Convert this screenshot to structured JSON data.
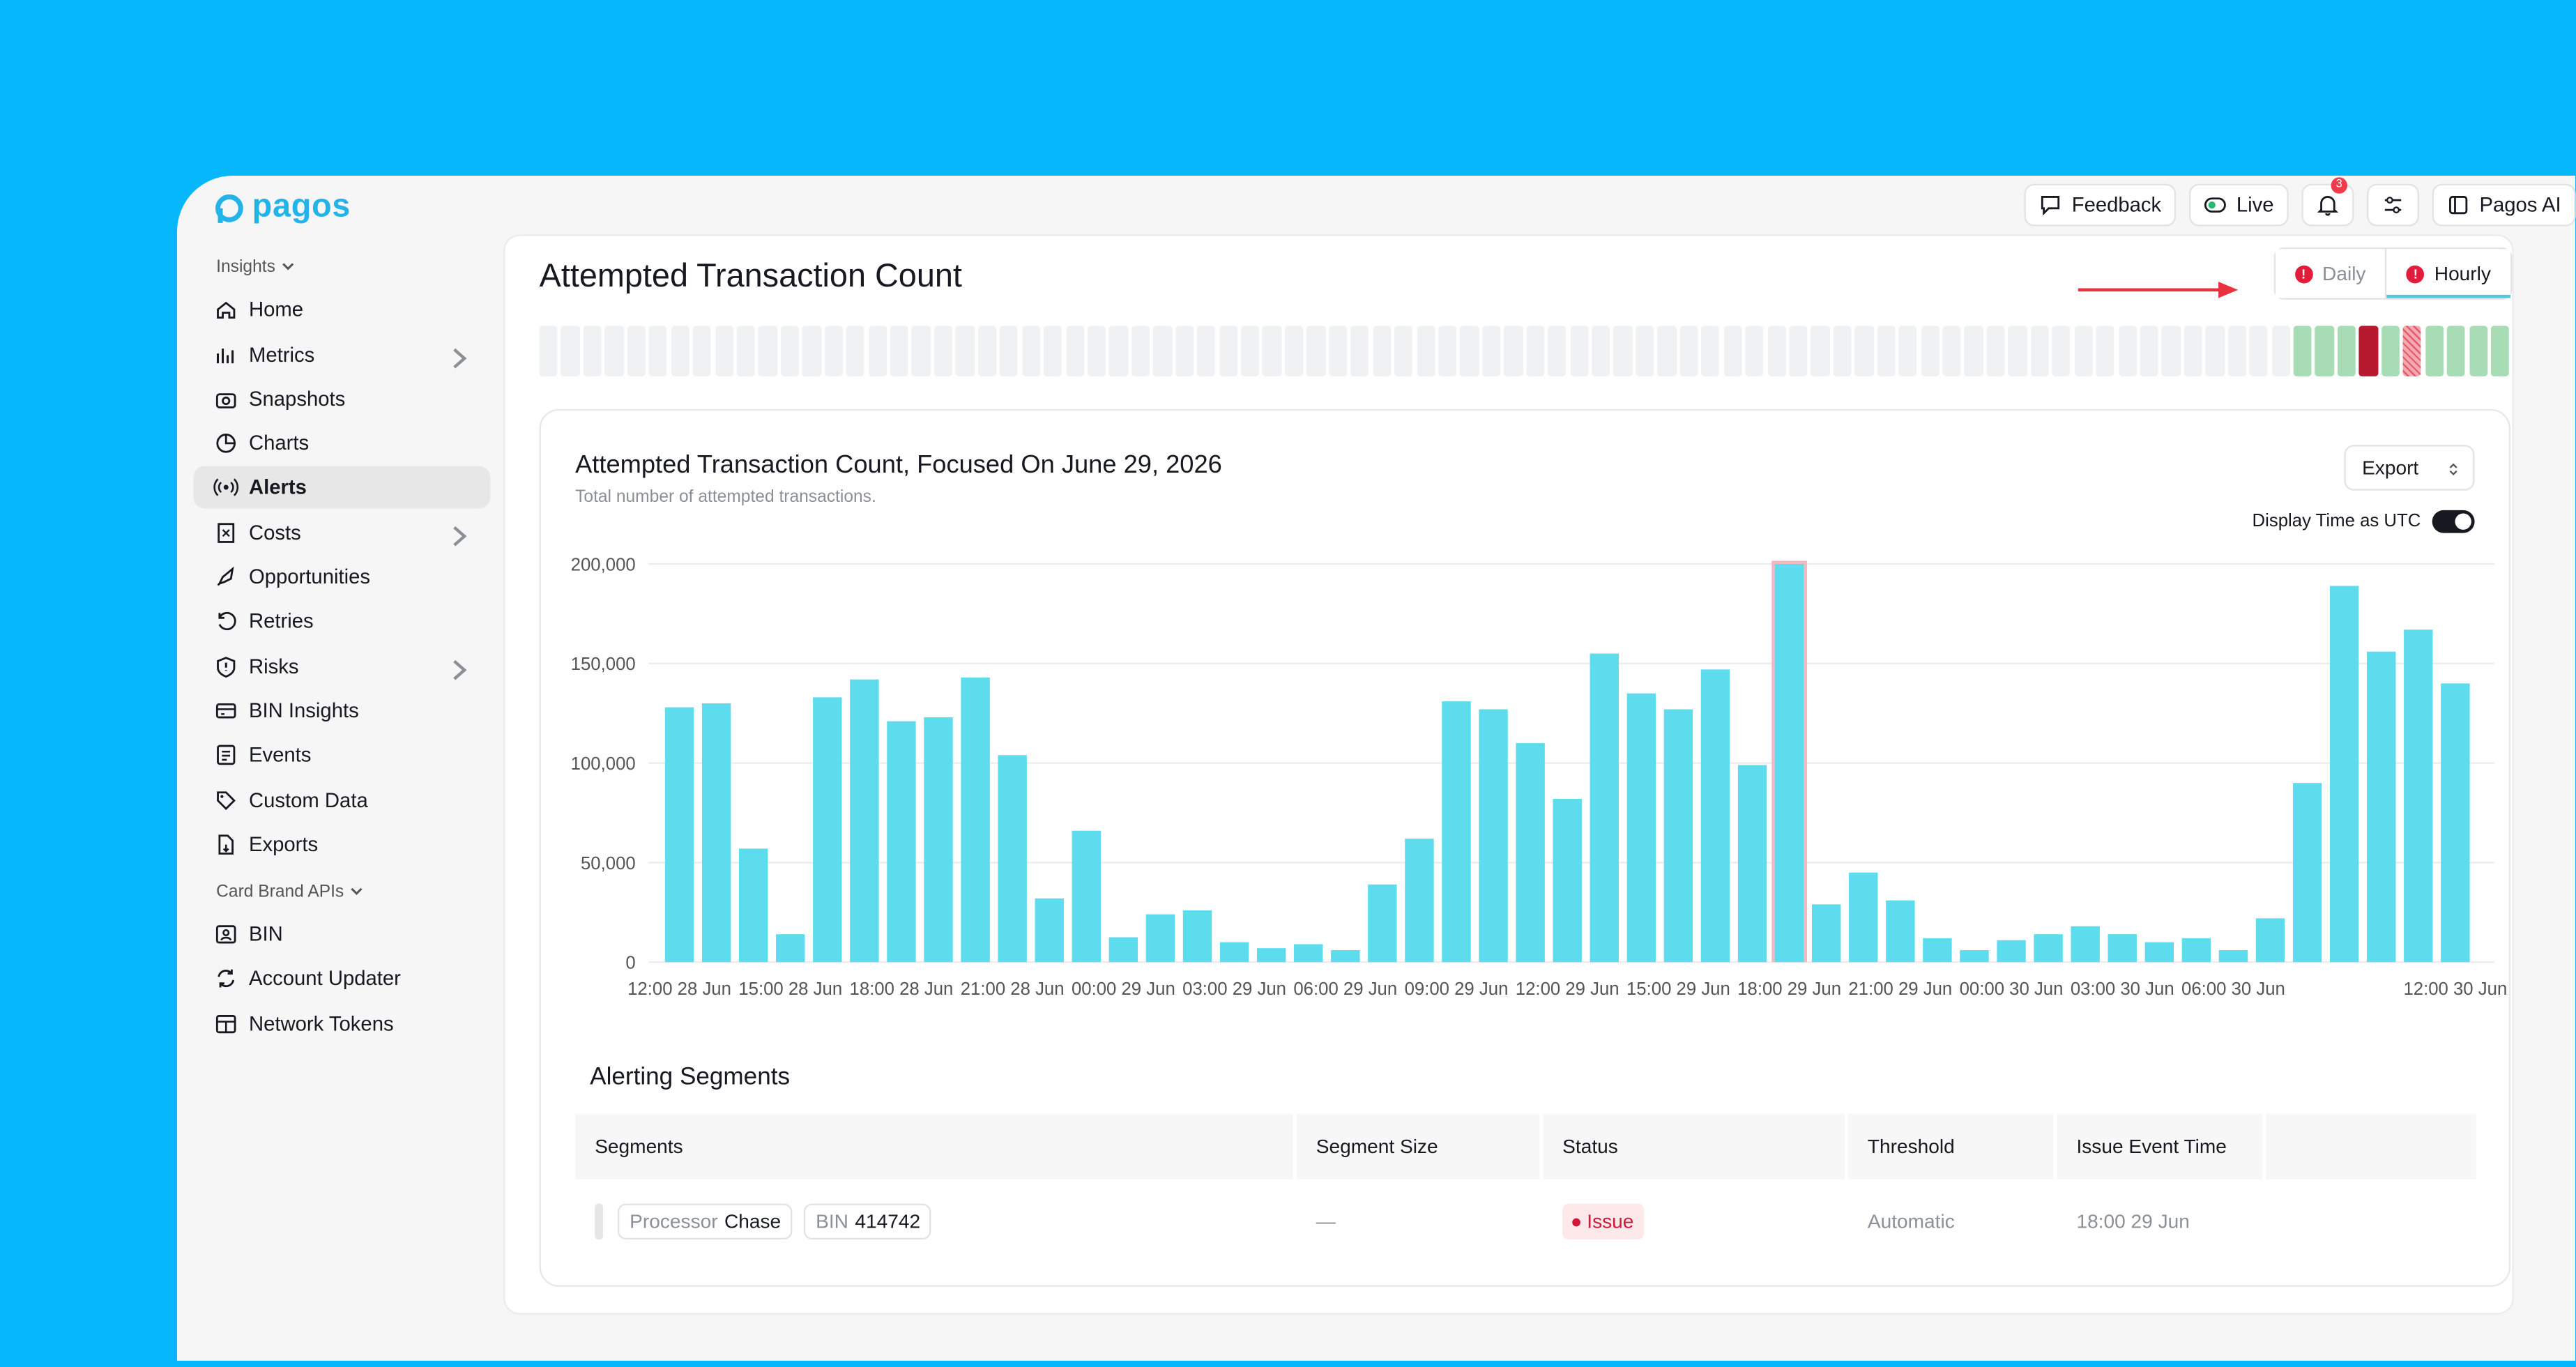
{
  "brand": {
    "name": "pagos",
    "color": "#22b4e8"
  },
  "topbar": {
    "feedback": "Feedback",
    "live": "Live",
    "notifications_count": "3",
    "pagos_ai": "Pagos AI"
  },
  "sidebar": {
    "insights_label": "Insights",
    "card_brand_label": "Card Brand APIs",
    "items": [
      {
        "label": "Home",
        "icon": "home-icon"
      },
      {
        "label": "Metrics",
        "icon": "metrics-icon"
      },
      {
        "label": "Snapshots",
        "icon": "camera-icon"
      },
      {
        "label": "Charts",
        "icon": "pie-chart-icon"
      },
      {
        "label": "Alerts",
        "icon": "broadcast-icon"
      },
      {
        "label": "Costs",
        "icon": "receipt-icon"
      },
      {
        "label": "Opportunities",
        "icon": "rocket-icon"
      },
      {
        "label": "Retries",
        "icon": "retry-icon"
      },
      {
        "label": "Risks",
        "icon": "shield-icon"
      },
      {
        "label": "BIN Insights",
        "icon": "card-icon"
      },
      {
        "label": "Events",
        "icon": "list-icon"
      },
      {
        "label": "Custom Data",
        "icon": "tag-icon"
      },
      {
        "label": "Exports",
        "icon": "file-export-icon"
      }
    ],
    "card_items": [
      {
        "label": "BIN",
        "icon": "id-card-icon"
      },
      {
        "label": "Account Updater",
        "icon": "refresh-icon"
      },
      {
        "label": "Network Tokens",
        "icon": "token-icon"
      }
    ]
  },
  "page": {
    "title": "Attempted Transaction Count",
    "toggle": {
      "daily": "Daily",
      "hourly": "Hourly",
      "selected": "Hourly"
    }
  },
  "strip": {
    "states": [
      "empty",
      "empty",
      "empty",
      "empty",
      "empty",
      "empty",
      "empty",
      "empty",
      "empty",
      "empty",
      "empty",
      "empty",
      "empty",
      "empty",
      "empty",
      "empty",
      "empty",
      "empty",
      "empty",
      "empty",
      "empty",
      "empty",
      "empty",
      "empty",
      "empty",
      "empty",
      "empty",
      "empty",
      "empty",
      "empty",
      "empty",
      "empty",
      "empty",
      "empty",
      "empty",
      "empty",
      "empty",
      "empty",
      "empty",
      "empty",
      "empty",
      "empty",
      "empty",
      "empty",
      "empty",
      "empty",
      "empty",
      "empty",
      "empty",
      "empty",
      "empty",
      "empty",
      "empty",
      "empty",
      "empty",
      "empty",
      "empty",
      "empty",
      "empty",
      "empty",
      "empty",
      "empty",
      "empty",
      "empty",
      "empty",
      "empty",
      "empty",
      "empty",
      "empty",
      "empty",
      "empty",
      "empty",
      "empty",
      "empty",
      "empty",
      "empty",
      "empty",
      "empty",
      "empty",
      "empty",
      "ok",
      "ok",
      "ok",
      "bad",
      "ok",
      "hatch",
      "ok",
      "ok",
      "ok",
      "ok"
    ]
  },
  "card": {
    "title": "Attempted Transaction Count, Focused On June 29, 2026",
    "subtitle": "Total number of attempted transactions.",
    "export_label": "Export",
    "utc_label": "Display Time as UTC"
  },
  "chart_data": {
    "type": "bar",
    "bar_color": "#5cdcec",
    "highlight_color": "#f3b9c0",
    "ylim": [
      0,
      200000
    ],
    "y_ticks": [
      "0",
      "50,000",
      "100,000",
      "150,000",
      "200,000"
    ],
    "x_tick_labels": [
      "12:00 28 Jun",
      "15:00 28 Jun",
      "18:00 28 Jun",
      "21:00 28 Jun",
      "00:00 29 Jun",
      "03:00 29 Jun",
      "06:00 29 Jun",
      "09:00 29 Jun",
      "12:00 29 Jun",
      "15:00 29 Jun",
      "18:00 29 Jun",
      "21:00 29 Jun",
      "00:00 30 Jun",
      "03:00 30 Jun",
      "06:00 30 Jun",
      "",
      "12:00 30 Jun"
    ],
    "highlight_index": 30,
    "values": [
      128000,
      130000,
      57000,
      14000,
      133000,
      142000,
      121000,
      123000,
      143000,
      104000,
      32000,
      66000,
      12500,
      24000,
      26000,
      10000,
      7000,
      9000,
      6000,
      39000,
      62000,
      131000,
      127000,
      110000,
      82000,
      155000,
      135000,
      127000,
      147000,
      99000,
      200000,
      29000,
      45000,
      31000,
      12000,
      6000,
      11000,
      14000,
      18000,
      14000,
      10000,
      12000,
      6000,
      22000,
      90000,
      189000,
      156000,
      167000,
      140000
    ]
  },
  "alerting": {
    "title": "Alerting Segments",
    "columns": [
      "Segments",
      "Segment Size",
      "Status",
      "Threshold",
      "Issue Event Time"
    ],
    "rows": [
      {
        "processor_key": "Processor",
        "processor_val": "Chase",
        "bin_key": "BIN",
        "bin_val": "414742",
        "size": "—",
        "status": "Issue",
        "threshold": "Automatic",
        "time": "18:00 29 Jun"
      }
    ]
  }
}
